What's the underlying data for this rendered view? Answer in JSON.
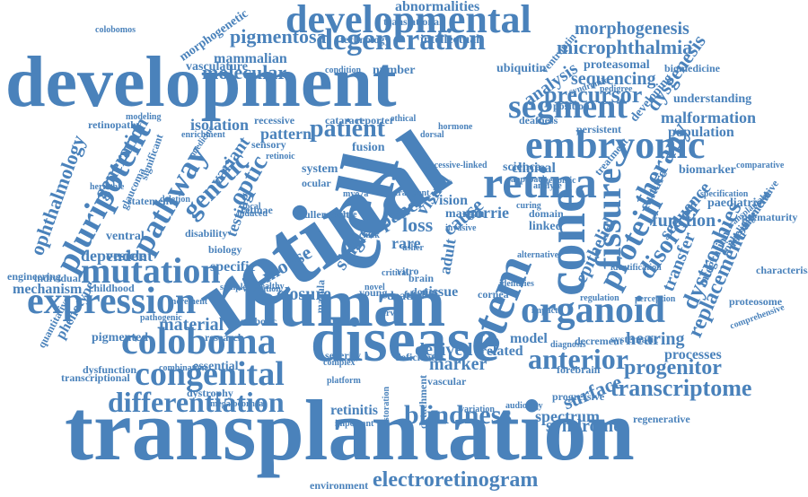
{
  "color": "#4a82bb",
  "words": [
    "transplantation",
    "retinal",
    "development",
    "disease",
    "human",
    "cell",
    "developmental",
    "embryonic",
    "organoid",
    "expression",
    "retina",
    "cone",
    "stem",
    "degeneration",
    "coloboma",
    "differentiation",
    "mutation",
    "congenital",
    "pluripotent",
    "fissure",
    "protein",
    "anterior",
    "segment",
    "patient",
    "genetic",
    "pathway",
    "blindness",
    "electroretinogram",
    "transcriptome",
    "optic",
    "disorder",
    "therapy",
    "dystrophies",
    "replacement",
    "progenitor",
    "surface",
    "derived",
    "mouse",
    "closure",
    "marker",
    "hearing",
    "spectrum",
    "syndrome",
    "analysis",
    "precursor",
    "microphthalmia",
    "morphogenesis",
    "abnormalities",
    "pigmentosa",
    "molecular",
    "mammalian",
    "ophthalmology",
    "generation",
    "function",
    "sequence",
    "transfer",
    "material",
    "rare",
    "loss",
    "panel",
    "cause",
    "single",
    "tissue",
    "epithelial",
    "sequencing",
    "dysgenesis",
    "variant",
    "testing",
    "isolation",
    "pattern",
    "system",
    "fusion",
    "visual",
    "vision",
    "norrie",
    "adult",
    "clinical",
    "culture",
    "biomarker",
    "malformation",
    "population",
    "understanding",
    "integration",
    "impairment",
    "prematurity",
    "characterisation",
    "proteasomal",
    "biomedicine",
    "ubiquitin",
    "intellectual",
    "technology",
    "translational",
    "vasculature",
    "condition",
    "number",
    "morphogenetic",
    "retinopathy",
    "recessive",
    "sensory",
    "glaucoma",
    "significant",
    "medicine",
    "ventral",
    "vesicle",
    "dependent",
    "specific",
    "mechanism",
    "individual",
    "childhood",
    "engineering",
    "phenotype",
    "quantitative",
    "pigmented",
    "research",
    "dysfunction",
    "essential",
    "processes",
    "transcriptional",
    "dystrophy",
    "megalocornea",
    "retinitis",
    "environment",
    "regenerative",
    "detachment",
    "restoration",
    "important",
    "related",
    "model",
    "cataract",
    "reporter",
    "statement",
    "disability",
    "biology",
    "paediatric",
    "specification",
    "epithelium",
    "proteosome",
    "comprehensive",
    "decrement",
    "diagnosis",
    "systematic",
    "forebrain",
    "progressive",
    "audiology",
    "variation",
    "deficient",
    "severity",
    "complex",
    "vascular",
    "death",
    "donor",
    "young",
    "cornea",
    "platform",
    "macula",
    "retinae",
    "result",
    "ocular",
    "muller",
    "ventroptin",
    "persistent",
    "position",
    "deafness",
    "syndromic",
    "pedigree",
    "science",
    "margin",
    "domain",
    "linked",
    "usher",
    "vitro",
    "brain",
    "fetal",
    "healthy",
    "catabolic",
    "modeling",
    "enrichment",
    "colobomos",
    "treatment",
    "developing",
    "comparative",
    "degenerative",
    "transplantable",
    "validation",
    "identifies",
    "regulation",
    "perception",
    "genomic",
    "analyse",
    "invasive",
    "approach",
    "curing",
    "novel",
    "dorsal",
    "increment",
    "combination",
    "pathogenic",
    "heritable",
    "identification",
    "critical",
    "recessive-linked",
    "nerve",
    "impact",
    "alternative",
    "transient",
    "hormone",
    "deletion",
    "ethical",
    "focal",
    "chick",
    "induced",
    "myo7a",
    "range",
    "sample",
    "retinoic",
    "cochlea",
    "focus",
    "form"
  ]
}
